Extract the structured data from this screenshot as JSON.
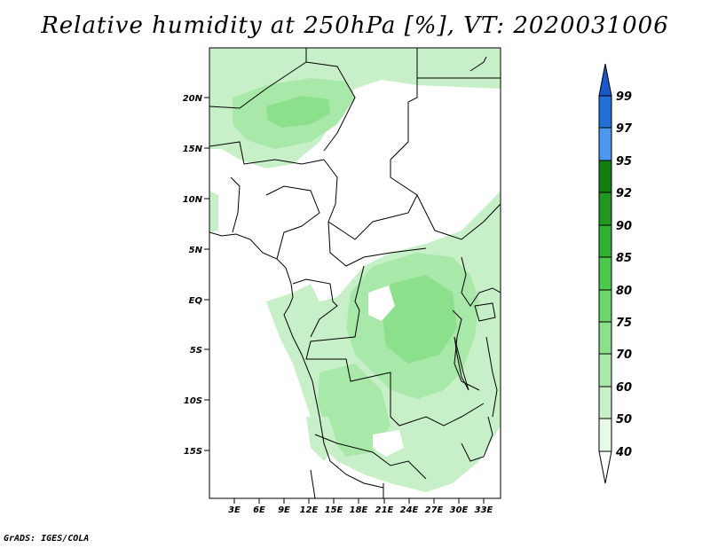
{
  "title": "Relative humidity at 250hPa [%], VT: 2020031006",
  "map": {
    "lat_labels": [
      "20N",
      "15N",
      "10N",
      "5N",
      "EQ",
      "5S",
      "10S",
      "15S"
    ],
    "lon_labels": [
      "3E",
      "6E",
      "9E",
      "12E",
      "15E",
      "18E",
      "21E",
      "24E",
      "27E",
      "30E",
      "33E"
    ],
    "lat_range": [
      -20,
      25
    ],
    "lon_range": [
      0,
      35
    ]
  },
  "colorbar": {
    "levels": [
      "40",
      "50",
      "60",
      "70",
      "75",
      "80",
      "85",
      "90",
      "92",
      "95",
      "97",
      "99"
    ],
    "colors": [
      "#ffffff",
      "#e6fae6",
      "#c8f0c8",
      "#a8e8a8",
      "#8ce08c",
      "#6cd66c",
      "#4cc84c",
      "#30b030",
      "#209820",
      "#108010",
      "#4a98f0",
      "#2070d8",
      "#1858c8"
    ]
  },
  "credit": "GrADS: IGES/COLA"
}
